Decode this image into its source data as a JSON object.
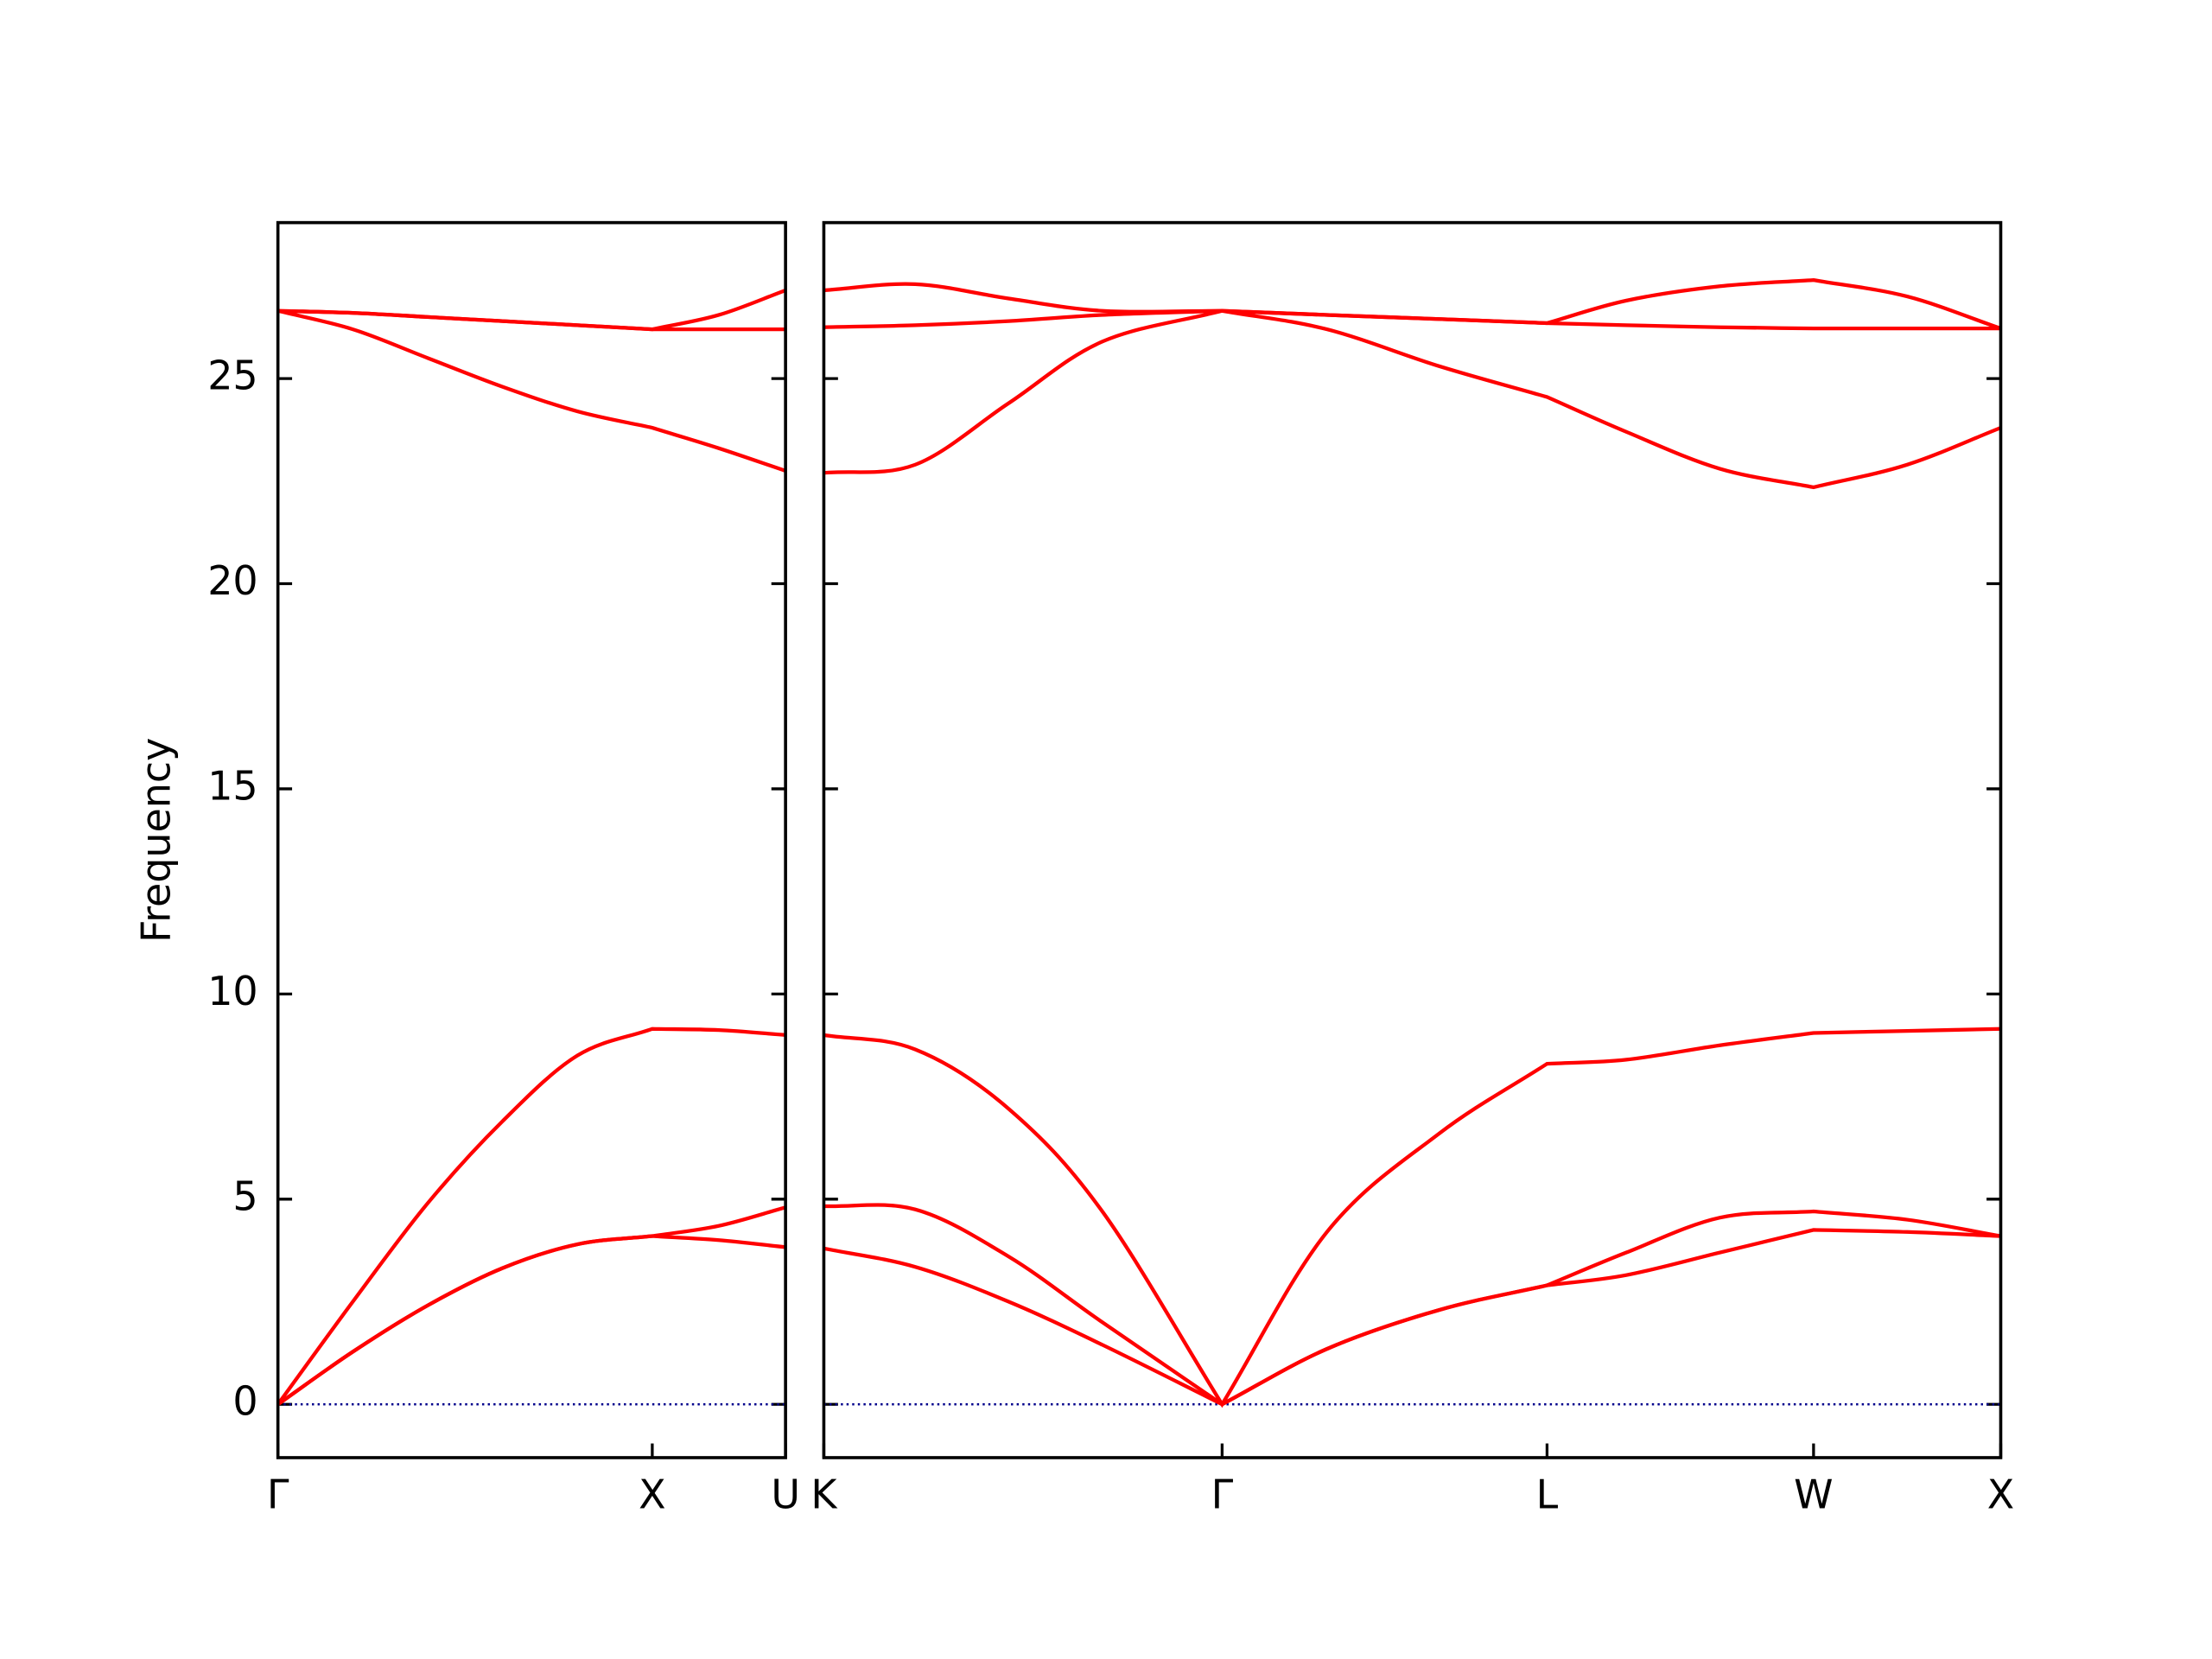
{
  "chart_data": [
    {
      "type": "line",
      "ylabel": "Frequency",
      "x": [
        0,
        0.2,
        0.4,
        0.6,
        0.8,
        1.0,
        1.178,
        1.356
      ],
      "xlim": [
        0,
        1.356
      ],
      "xticks": [
        {
          "value": 0,
          "label": "Γ"
        },
        {
          "value": 1.0,
          "label": "X"
        },
        {
          "value": 1.356,
          "label": "U"
        }
      ],
      "ylim": [
        -1.3,
        28.8
      ],
      "yticks": [
        0,
        5,
        10,
        15,
        20,
        25
      ],
      "hline": 0,
      "hline_color": "#00008b",
      "series": [
        {
          "color": "#ff0000",
          "values": [
            0,
            1.28,
            2.41,
            3.32,
            3.9,
            4.1,
            4.0,
            3.83
          ]
        },
        {
          "color": "#ff0000",
          "values": [
            0,
            1.28,
            2.41,
            3.32,
            3.9,
            4.1,
            4.35,
            4.8
          ]
        },
        {
          "color": "#ff0000",
          "values": [
            0,
            2.5,
            4.9,
            6.9,
            8.5,
            9.15,
            9.12,
            9.0
          ]
        },
        {
          "color": "#ff0000",
          "values": [
            26.65,
            26.2,
            25.5,
            24.8,
            24.2,
            23.8,
            23.3,
            22.75
          ]
        },
        {
          "color": "#ff0000",
          "values": [
            26.65,
            26.6,
            26.5,
            26.4,
            26.3,
            26.2,
            26.2,
            26.2
          ]
        },
        {
          "color": "#ff0000",
          "values": [
            26.65,
            26.6,
            26.5,
            26.4,
            26.3,
            26.2,
            26.55,
            27.15
          ]
        }
      ]
    },
    {
      "type": "line",
      "x": [
        1.356,
        1.6,
        1.85,
        2.1,
        2.42,
        2.7,
        3.0,
        3.288,
        3.5,
        3.75,
        4.0,
        4.25,
        4.5
      ],
      "xlim": [
        1.356,
        4.5
      ],
      "xticks": [
        {
          "value": 1.356,
          "label": "K"
        },
        {
          "value": 2.42,
          "label": "Γ"
        },
        {
          "value": 3.288,
          "label": "L"
        },
        {
          "value": 4.0,
          "label": "W"
        },
        {
          "value": 4.5,
          "label": "X"
        }
      ],
      "ylim": [
        -1.3,
        28.8
      ],
      "hline": 0,
      "hline_color": "#00008b",
      "series": [
        {
          "color": "#ff0000",
          "values": [
            3.8,
            3.35,
            2.5,
            1.45,
            0,
            1.35,
            2.3,
            2.9,
            3.15,
            3.7,
            4.25,
            4.2,
            4.1
          ]
        },
        {
          "color": "#ff0000",
          "values": [
            4.83,
            4.75,
            3.6,
            2.0,
            0,
            1.35,
            2.3,
            2.9,
            3.7,
            4.55,
            4.7,
            4.5,
            4.1
          ]
        },
        {
          "color": "#ff0000",
          "values": [
            9.0,
            8.65,
            7.2,
            4.7,
            0,
            4.2,
            6.6,
            8.3,
            8.4,
            8.75,
            9.05,
            9.1,
            9.15
          ]
        },
        {
          "color": "#ff0000",
          "values": [
            22.7,
            22.9,
            24.4,
            25.9,
            26.65,
            26.2,
            25.3,
            24.55,
            23.7,
            22.8,
            22.35,
            22.9,
            23.8
          ]
        },
        {
          "color": "#ff0000",
          "values": [
            26.25,
            26.3,
            26.4,
            26.55,
            26.65,
            26.55,
            26.45,
            26.35,
            26.3,
            26.25,
            26.22,
            26.22,
            26.22
          ]
        },
        {
          "color": "#ff0000",
          "values": [
            27.15,
            27.3,
            26.95,
            26.65,
            26.65,
            26.55,
            26.45,
            26.35,
            26.9,
            27.25,
            27.4,
            27.0,
            26.22
          ]
        }
      ]
    }
  ]
}
